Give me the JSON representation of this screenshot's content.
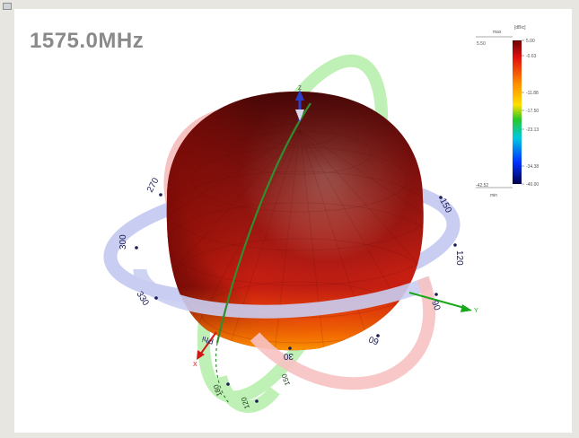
{
  "title": "1575.0MHz",
  "legend": {
    "unit": "[dBic]",
    "max_label": "max",
    "max_value": "5.50",
    "min_label": "min",
    "min_value": "-42.52",
    "ticks": [
      "5.00",
      "-0.63",
      "-11.88",
      "-17.50",
      "-23.13",
      "-34.38",
      "-40.00"
    ],
    "colors": [
      "#7a0000",
      "#e01010",
      "#ff8c00",
      "#ffe000",
      "#28c828",
      "#00c8e0",
      "#0030ff",
      "#000060"
    ]
  },
  "rings": {
    "phi_labels": [
      "270",
      "150",
      "300",
      "120",
      "330",
      "90",
      "30",
      "60"
    ],
    "phi_axis_label": "Phi",
    "theta_labels": [
      "180",
      "120",
      "150"
    ],
    "axis_y_label": "Y",
    "axis_x_label": "X",
    "axis_z_label": "Z"
  },
  "colors": {
    "sphere_light": "#d98a7a",
    "sphere_mid": "#c2231a",
    "sphere_dark": "#4a0606",
    "sphere_bottom": "#ff8a00",
    "phi_ring": "#c9cdf2",
    "theta_ring_green": "#bff0b5",
    "theta_ring_red": "#f7c2c2"
  }
}
